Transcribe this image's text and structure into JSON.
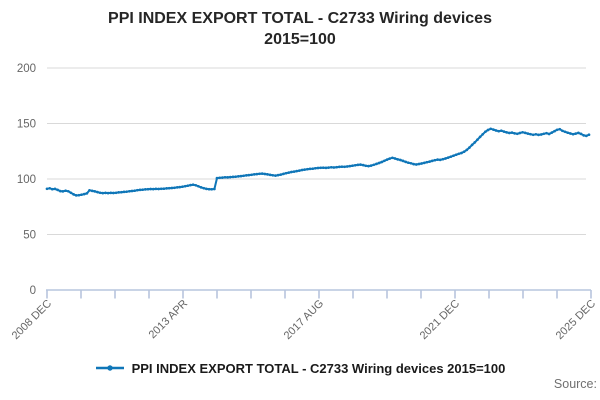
{
  "title": {
    "line1": "PPI INDEX EXPORT TOTAL - C2733 Wiring devices",
    "line2": "2015=100"
  },
  "legend": {
    "label": "PPI INDEX EXPORT TOTAL - C2733 Wiring devices 2015=100"
  },
  "source": {
    "label": "Source:"
  },
  "colors": {
    "series": "#0f76b8",
    "grid": "#d9d9d9",
    "axis": "#b7c5dd",
    "tick_label": "#666666"
  },
  "chart_data": {
    "type": "line",
    "title": "PPI INDEX EXPORT TOTAL - C2733 Wiring devices 2015=100",
    "ylim": [
      0,
      200
    ],
    "y_ticks": [
      0,
      50,
      100,
      150,
      200
    ],
    "x_tick_labels": [
      "2008 DEC",
      "2013 APR",
      "2017 AUG",
      "2021 DEC",
      "2025 DEC"
    ],
    "x_minor_tick_count": 17,
    "grid": "horizontal",
    "legend_position": "bottom",
    "series": [
      {
        "name": "PPI INDEX EXPORT TOTAL - C2733 Wiring devices 2015=100",
        "frequency": "monthly",
        "start": "2008 DEC",
        "end": "2025 DEC",
        "values": [
          91.2,
          91.6,
          90.8,
          91.1,
          90.2,
          89.1,
          88.8,
          89.5,
          88.9,
          87.6,
          86.1,
          85.2,
          85.4,
          85.9,
          86.4,
          87.0,
          89.8,
          89.3,
          88.8,
          88.2,
          87.6,
          87.3,
          87.5,
          87.3,
          87.5,
          87.4,
          87.6,
          87.9,
          88.1,
          88.4,
          88.6,
          88.9,
          89.2,
          89.5,
          89.9,
          90.2,
          90.4,
          90.6,
          90.8,
          91.0,
          90.9,
          91.1,
          91.0,
          91.2,
          91.3,
          91.5,
          91.7,
          91.9,
          92.1,
          92.4,
          92.7,
          93.1,
          93.5,
          94.0,
          94.5,
          94.9,
          94.3,
          93.4,
          92.4,
          91.7,
          91.1,
          90.8,
          90.7,
          91.0,
          100.8,
          101.1,
          101.3,
          101.5,
          101.4,
          101.7,
          101.9,
          102.1,
          102.3,
          102.6,
          102.9,
          103.2,
          103.5,
          103.8,
          104.1,
          104.4,
          104.7,
          104.9,
          104.5,
          104.1,
          103.7,
          103.3,
          103.1,
          103.5,
          104.0,
          104.6,
          105.2,
          105.8,
          106.3,
          106.7,
          107.1,
          107.6,
          108.1,
          108.5,
          108.8,
          109.1,
          109.3,
          109.6,
          109.9,
          110.1,
          110.2,
          110.0,
          110.3,
          110.5,
          110.4,
          110.6,
          110.9,
          111.1,
          111.0,
          111.3,
          111.6,
          112.0,
          112.3,
          112.7,
          113.0,
          112.5,
          111.9,
          111.6,
          112.1,
          112.8,
          113.6,
          114.4,
          115.3,
          116.4,
          117.5,
          118.4,
          119.1,
          118.5,
          117.7,
          117.1,
          116.3,
          115.4,
          114.7,
          114.1,
          113.4,
          113.1,
          113.5,
          114.0,
          114.5,
          115.1,
          115.7,
          116.3,
          116.9,
          117.5,
          117.2,
          117.8,
          118.5,
          119.3,
          120.1,
          121.0,
          121.9,
          122.7,
          123.4,
          124.6,
          126.2,
          128.3,
          130.7,
          133.0,
          135.4,
          137.9,
          140.3,
          142.6,
          144.1,
          145.2,
          144.5,
          143.7,
          143.1,
          143.5,
          142.7,
          142.0,
          141.4,
          141.8,
          141.1,
          140.7,
          141.4,
          142.1,
          141.5,
          140.9,
          140.4,
          139.8,
          140.3,
          139.7,
          140.1,
          140.7,
          141.3,
          140.5,
          141.8,
          143.1,
          144.3,
          144.9,
          143.4,
          142.5,
          141.7,
          141.0,
          140.4,
          140.9,
          141.5,
          140.6,
          139.3,
          138.8,
          139.9
        ]
      }
    ]
  }
}
